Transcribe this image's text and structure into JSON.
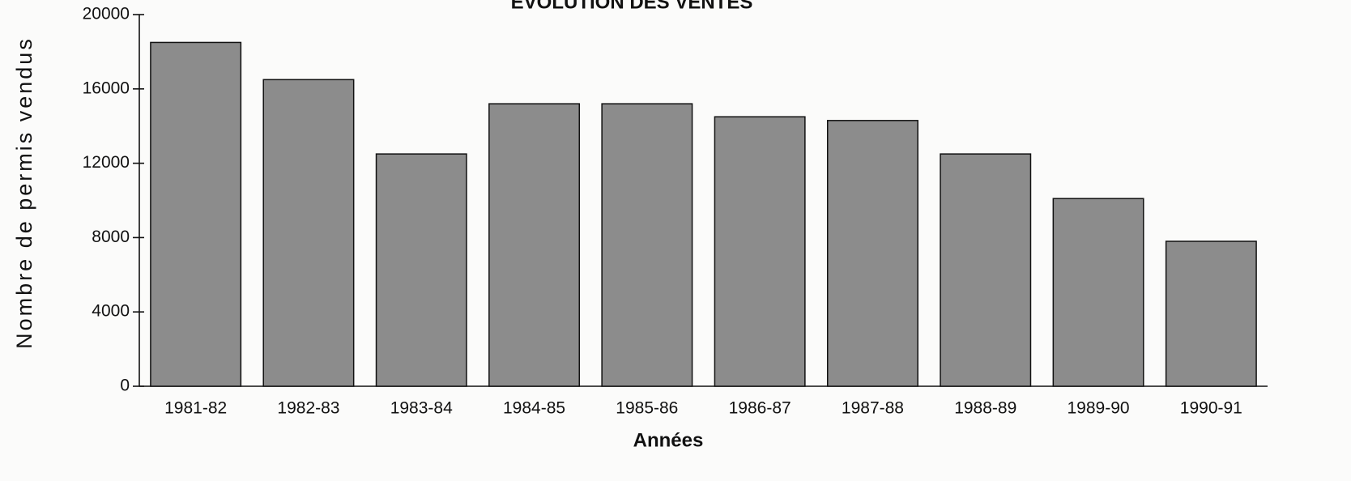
{
  "chart_data": {
    "type": "bar",
    "title": "ÉVOLUTION DES VENTES",
    "x_label": "Années",
    "y_label": "Nombre de permis vendus",
    "categories": [
      "1981-82",
      "1982-83",
      "1983-84",
      "1984-85",
      "1985-86",
      "1986-87",
      "1987-88",
      "1988-89",
      "1989-90",
      "1990-91"
    ],
    "values": [
      18500,
      16500,
      12500,
      15200,
      15200,
      14500,
      14300,
      12500,
      10100,
      7800
    ],
    "color": "#8c8c8c",
    "ylim": [
      0,
      20000
    ],
    "yticks": [
      0,
      4000,
      8000,
      12000,
      16000,
      20000
    ],
    "grid": false
  }
}
